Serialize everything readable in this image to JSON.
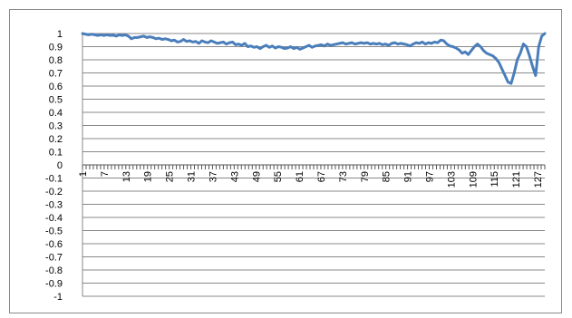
{
  "chart_data": {
    "type": "line",
    "title": "",
    "xlabel": "",
    "ylabel": "",
    "ylim": [
      -1,
      1
    ],
    "y_ticks": [
      "1",
      "0.9",
      "0.8",
      "0.7",
      "0.6",
      "0.5",
      "0.4",
      "0.3",
      "0.2",
      "0.1",
      "0",
      "-0.1",
      "-0.2",
      "-0.3",
      "-0.4",
      "-0.5",
      "-0.6",
      "-0.7",
      "-0.8",
      "-0.9",
      "-1"
    ],
    "x_tick_labels": [
      "1",
      "7",
      "13",
      "19",
      "25",
      "31",
      "37",
      "43",
      "49",
      "55",
      "61",
      "67",
      "73",
      "79",
      "85",
      "91",
      "97",
      "103",
      "109",
      "115",
      "121",
      "127"
    ],
    "x_range": [
      1,
      129
    ],
    "grid": true,
    "legend": "none",
    "series_color": "#4a7ebb",
    "series": [
      {
        "values": [
          1.0,
          0.995,
          0.99,
          0.995,
          0.99,
          0.985,
          0.99,
          0.985,
          0.99,
          0.985,
          0.99,
          0.98,
          0.99,
          0.985,
          0.99,
          0.98,
          0.96,
          0.97,
          0.97,
          0.975,
          0.98,
          0.97,
          0.975,
          0.97,
          0.96,
          0.965,
          0.955,
          0.96,
          0.955,
          0.945,
          0.95,
          0.935,
          0.94,
          0.955,
          0.94,
          0.945,
          0.935,
          0.94,
          0.925,
          0.945,
          0.935,
          0.93,
          0.945,
          0.935,
          0.925,
          0.93,
          0.935,
          0.92,
          0.93,
          0.935,
          0.915,
          0.92,
          0.91,
          0.925,
          0.9,
          0.905,
          0.895,
          0.9,
          0.885,
          0.9,
          0.91,
          0.895,
          0.905,
          0.89,
          0.9,
          0.895,
          0.885,
          0.89,
          0.9,
          0.885,
          0.895,
          0.88,
          0.89,
          0.9,
          0.91,
          0.895,
          0.905,
          0.91,
          0.915,
          0.905,
          0.92,
          0.91,
          0.915,
          0.92,
          0.925,
          0.93,
          0.92,
          0.925,
          0.93,
          0.92,
          0.925,
          0.93,
          0.925,
          0.93,
          0.92,
          0.925,
          0.92,
          0.925,
          0.915,
          0.92,
          0.91,
          0.925,
          0.93,
          0.92,
          0.925,
          0.92,
          0.915,
          0.905,
          0.92,
          0.93,
          0.925,
          0.935,
          0.92,
          0.93,
          0.925,
          0.935,
          0.93,
          0.95,
          0.945,
          0.92,
          0.905,
          0.9,
          0.89,
          0.875,
          0.85,
          0.86,
          0.84,
          0.87,
          0.9,
          0.92,
          0.9,
          0.87,
          0.85,
          0.84,
          0.83,
          0.81,
          0.78,
          0.73,
          0.68,
          0.63,
          0.62,
          0.7,
          0.8,
          0.85,
          0.92,
          0.9,
          0.83,
          0.75,
          0.68,
          0.9,
          0.98,
          1.0
        ]
      }
    ]
  }
}
